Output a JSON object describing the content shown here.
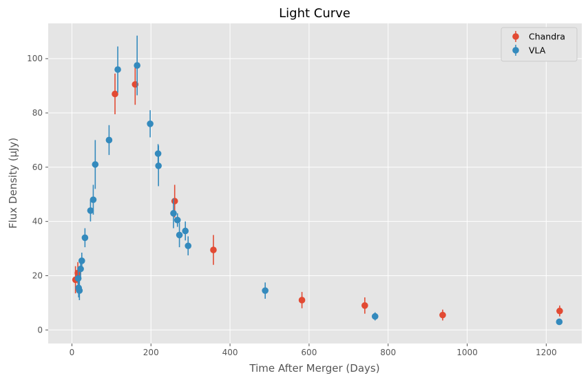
{
  "chart_data": {
    "type": "scatter",
    "title": "Light Curve",
    "xlabel": "Time After Merger (Days)",
    "ylabel": "Flux Density (µJy)",
    "xlim": [
      -60,
      1290
    ],
    "ylim": [
      -5,
      113
    ],
    "xticks": [
      0,
      200,
      400,
      600,
      800,
      1000,
      1200
    ],
    "yticks": [
      0,
      20,
      40,
      60,
      80,
      100
    ],
    "grid": true,
    "legend_position": "top-right",
    "colors": {
      "background": "#e5e5e5",
      "grid": "#ffffff",
      "chandra": "#e24a33",
      "vla": "#348abd"
    },
    "series": [
      {
        "name": "Chandra",
        "color": "#e24a33",
        "points": [
          {
            "x": 9,
            "y": 18.5,
            "err": 5.0
          },
          {
            "x": 15,
            "y": 21.0,
            "err": 4.0
          },
          {
            "x": 109,
            "y": 87.0,
            "err": 7.5
          },
          {
            "x": 160,
            "y": 90.5,
            "err": 7.5
          },
          {
            "x": 260,
            "y": 47.5,
            "err": 6.0
          },
          {
            "x": 358,
            "y": 29.5,
            "err": 5.5
          },
          {
            "x": 582,
            "y": 11.0,
            "err": 3.0
          },
          {
            "x": 741,
            "y": 9.0,
            "err": 3.0
          },
          {
            "x": 938,
            "y": 5.5,
            "err": 2.0
          },
          {
            "x": 1234,
            "y": 7.0,
            "err": 2.0
          }
        ]
      },
      {
        "name": "VLA",
        "color": "#348abd",
        "points": [
          {
            "x": 16,
            "y": 19.0,
            "err": 3.5
          },
          {
            "x": 17,
            "y": 15.5,
            "err": 3.5
          },
          {
            "x": 19,
            "y": 14.5,
            "err": 3.5
          },
          {
            "x": 22,
            "y": 22.5,
            "err": 3.5
          },
          {
            "x": 25,
            "y": 25.5,
            "err": 3.0
          },
          {
            "x": 33,
            "y": 34.0,
            "err": 3.5
          },
          {
            "x": 47,
            "y": 44.0,
            "err": 4.0
          },
          {
            "x": 54,
            "y": 48.0,
            "err": 5.5
          },
          {
            "x": 59,
            "y": 61.0,
            "err": 9.0
          },
          {
            "x": 94,
            "y": 70.0,
            "err": 5.5
          },
          {
            "x": 116,
            "y": 96.0,
            "err": 8.5
          },
          {
            "x": 165,
            "y": 97.5,
            "err": 11.0
          },
          {
            "x": 198,
            "y": 76.0,
            "err": 5.0
          },
          {
            "x": 218,
            "y": 65.0,
            "err": 3.5
          },
          {
            "x": 219,
            "y": 60.5,
            "err": 7.5
          },
          {
            "x": 257,
            "y": 43.0,
            "err": 5.5
          },
          {
            "x": 267,
            "y": 40.5,
            "err": 2.5
          },
          {
            "x": 272,
            "y": 35.0,
            "err": 4.5
          },
          {
            "x": 287,
            "y": 36.5,
            "err": 3.5
          },
          {
            "x": 294,
            "y": 31.0,
            "err": 3.5
          },
          {
            "x": 489,
            "y": 14.5,
            "err": 3.0
          },
          {
            "x": 767,
            "y": 5.0,
            "err": 1.5
          },
          {
            "x": 1233,
            "y": 3.0,
            "err": 0.5
          }
        ]
      }
    ]
  }
}
